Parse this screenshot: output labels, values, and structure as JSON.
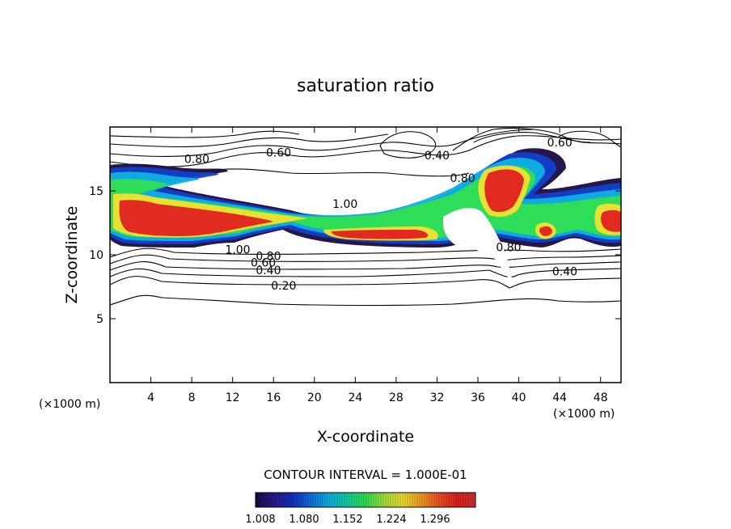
{
  "chart_data": {
    "type": "contour",
    "title": "saturation ratio",
    "xlabel": "X-coordinate",
    "ylabel": "Z-coordinate",
    "x_unit": "(×1000 m)",
    "y_unit": "(×1000 m)",
    "xlim": [
      0,
      50
    ],
    "ylim": [
      0,
      20
    ],
    "x_ticks": [
      "4",
      "8",
      "12",
      "16",
      "20",
      "24",
      "28",
      "32",
      "36",
      "40",
      "44",
      "48"
    ],
    "y_ticks": [
      "5",
      "10",
      "15"
    ],
    "contour_interval": "CONTOUR INTERVAL = 1.000E-01",
    "contour_labels": [
      {
        "text": "0.80",
        "x": 8.5,
        "z": 17.5
      },
      {
        "text": "0.60",
        "x": 16.5,
        "z": 18.0
      },
      {
        "text": "0.40",
        "x": 32.0,
        "z": 17.8
      },
      {
        "text": "0.60",
        "x": 44.0,
        "z": 18.8
      },
      {
        "text": "0.80",
        "x": 34.5,
        "z": 16.0
      },
      {
        "text": "1.00",
        "x": 23.0,
        "z": 14.0
      },
      {
        "text": "1.00",
        "x": 12.5,
        "z": 10.4
      },
      {
        "text": "0.80",
        "x": 15.5,
        "z": 9.9
      },
      {
        "text": "0.60",
        "x": 15.0,
        "z": 9.4
      },
      {
        "text": "0.40",
        "x": 15.5,
        "z": 8.8
      },
      {
        "text": "0.20",
        "x": 17.0,
        "z": 7.6
      },
      {
        "text": "0.80",
        "x": 39.0,
        "z": 10.6
      },
      {
        "text": "0.40",
        "x": 44.5,
        "z": 8.7
      }
    ],
    "colorbar": {
      "ticks": [
        "1.008",
        "1.080",
        "1.152",
        "1.224",
        "1.296"
      ],
      "colors": [
        "#1a0a40",
        "#2a1a90",
        "#1030c0",
        "#1070e0",
        "#10b0e0",
        "#10d0a0",
        "#30e050",
        "#a0e040",
        "#f0e030",
        "#f0a020",
        "#f05020",
        "#e02020",
        "#d03030"
      ]
    }
  }
}
